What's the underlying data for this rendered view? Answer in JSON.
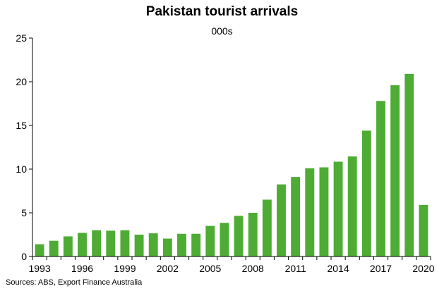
{
  "chart_data": {
    "type": "bar",
    "title": "Pakistan tourist arrivals",
    "subtitle": "000s",
    "source": "Sources: ABS, Export Finance Australia",
    "categories": [
      "1993",
      "1994",
      "1995",
      "1996",
      "1997",
      "1998",
      "1999",
      "2000",
      "2001",
      "2002",
      "2003",
      "2004",
      "2005",
      "2006",
      "2007",
      "2008",
      "2009",
      "2010",
      "2011",
      "2012",
      "2013",
      "2014",
      "2015",
      "2016",
      "2017",
      "2018",
      "2019",
      "2020"
    ],
    "x_tick_labels": [
      "1993",
      "1996",
      "1999",
      "2002",
      "2005",
      "2008",
      "2011",
      "2014",
      "2017",
      "2020"
    ],
    "values": [
      1.4,
      1.8,
      2.3,
      2.7,
      3.0,
      2.95,
      3.0,
      2.5,
      2.65,
      2.05,
      2.6,
      2.6,
      3.5,
      3.85,
      4.65,
      5.0,
      6.5,
      8.25,
      9.1,
      10.1,
      10.2,
      10.85,
      11.45,
      14.4,
      17.8,
      19.6,
      20.9,
      5.9
    ],
    "ylim": [
      0,
      25
    ],
    "y_ticks": [
      0,
      5,
      10,
      15,
      20,
      25
    ],
    "bar_color": "#4eac34",
    "grid": false
  }
}
